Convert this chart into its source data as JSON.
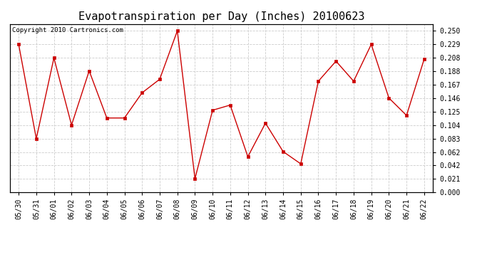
{
  "title": "Evapotranspiration per Day (Inches) 20100623",
  "copyright": "Copyright 2010 Cartronics.com",
  "dates": [
    "05/30",
    "05/31",
    "06/01",
    "06/02",
    "06/03",
    "06/04",
    "06/05",
    "06/06",
    "06/07",
    "06/08",
    "06/09",
    "06/10",
    "06/11",
    "06/12",
    "06/13",
    "06/14",
    "06/15",
    "06/16",
    "06/17",
    "06/18",
    "06/19",
    "06/20",
    "06/21",
    "06/22"
  ],
  "values": [
    0.229,
    0.083,
    0.208,
    0.104,
    0.188,
    0.115,
    0.115,
    0.154,
    0.175,
    0.25,
    0.021,
    0.127,
    0.135,
    0.055,
    0.107,
    0.063,
    0.044,
    0.172,
    0.203,
    0.172,
    0.229,
    0.146,
    0.119,
    0.206
  ],
  "yticks": [
    0.0,
    0.021,
    0.042,
    0.062,
    0.083,
    0.104,
    0.125,
    0.146,
    0.167,
    0.188,
    0.208,
    0.229,
    0.25
  ],
  "ylim": [
    0.0,
    0.2605
  ],
  "line_color": "#cc0000",
  "marker": "s",
  "marker_color": "#cc0000",
  "marker_size": 3,
  "bg_color": "#ffffff",
  "plot_bg_color": "#ffffff",
  "grid_color": "#cccccc",
  "title_fontsize": 11,
  "tick_fontsize": 7,
  "copyright_fontsize": 6.5
}
